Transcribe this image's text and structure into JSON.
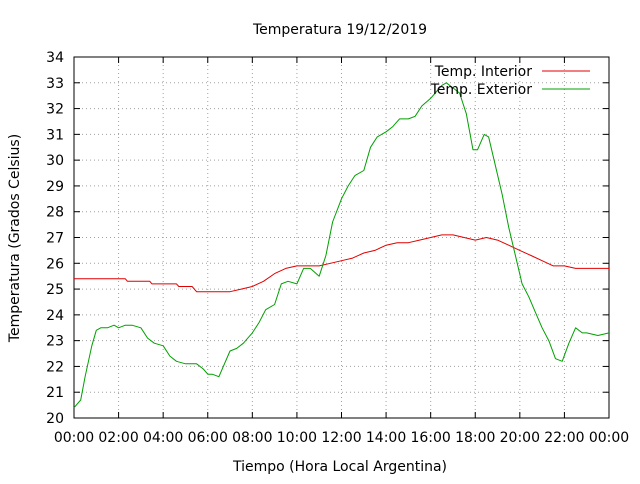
{
  "chart_data": {
    "type": "line",
    "title": "Temperatura 19/12/2019",
    "xlabel": "Tiempo (Hora Local Argentina)",
    "ylabel": "Temperatura (Grados Celsius)",
    "xlim": [
      0,
      24
    ],
    "ylim": [
      20,
      34
    ],
    "x_ticks": [
      0,
      2,
      4,
      6,
      8,
      10,
      12,
      14,
      16,
      18,
      20,
      22,
      24
    ],
    "x_tick_labels": [
      "00:00",
      "02:00",
      "04:00",
      "06:00",
      "08:00",
      "10:00",
      "12:00",
      "14:00",
      "16:00",
      "18:00",
      "20:00",
      "22:00",
      "00:00"
    ],
    "y_ticks": [
      20,
      21,
      22,
      23,
      24,
      25,
      26,
      27,
      28,
      29,
      30,
      31,
      32,
      33,
      34
    ],
    "y_tick_labels": [
      "20",
      "21",
      "22",
      "23",
      "24",
      "25",
      "26",
      "27",
      "28",
      "29",
      "30",
      "31",
      "32",
      "33",
      "34"
    ],
    "grid": true,
    "legend_position": "top-right",
    "series": [
      {
        "name": "Temp. Interior",
        "color": "#e00000",
        "x": [
          0,
          2.3,
          2.4,
          3.4,
          3.5,
          4.6,
          4.7,
          5.3,
          5.5,
          7.0,
          7.5,
          8.0,
          8.5,
          9.0,
          9.5,
          10.0,
          11.0,
          11.5,
          12.0,
          12.5,
          13.0,
          13.5,
          14.0,
          14.5,
          15.0,
          15.5,
          16.0,
          16.5,
          17.0,
          17.5,
          18.0,
          18.5,
          19.0,
          19.5,
          20.0,
          20.5,
          21.0,
          21.5,
          22.0,
          22.5,
          23.0,
          24.0
        ],
        "y": [
          25.4,
          25.4,
          25.3,
          25.3,
          25.2,
          25.2,
          25.1,
          25.1,
          24.9,
          24.9,
          25.0,
          25.1,
          25.3,
          25.6,
          25.8,
          25.9,
          25.9,
          26.0,
          26.1,
          26.2,
          26.4,
          26.5,
          26.7,
          26.8,
          26.8,
          26.9,
          27.0,
          27.1,
          27.1,
          27.0,
          26.9,
          27.0,
          26.9,
          26.7,
          26.5,
          26.3,
          26.1,
          25.9,
          25.9,
          25.8,
          25.8,
          25.8
        ],
        "label_key": "interior"
      },
      {
        "name": "Temp. Exterior",
        "color": "#00a000",
        "x": [
          0,
          0.3,
          0.5,
          0.8,
          1.0,
          1.2,
          1.5,
          1.8,
          2.0,
          2.3,
          2.6,
          3.0,
          3.3,
          3.6,
          4.0,
          4.3,
          4.6,
          5.0,
          5.5,
          5.8,
          6.0,
          6.2,
          6.5,
          7.0,
          7.3,
          7.6,
          8.0,
          8.3,
          8.6,
          9.0,
          9.3,
          9.6,
          10.0,
          10.3,
          10.6,
          11.0,
          11.3,
          11.6,
          12.0,
          12.3,
          12.6,
          13.0,
          13.3,
          13.6,
          14.0,
          14.3,
          14.6,
          15.0,
          15.3,
          15.6,
          16.0,
          16.3,
          16.5,
          16.7,
          17.0,
          17.3,
          17.6,
          17.9,
          18.1,
          18.4,
          18.6,
          18.9,
          19.2,
          19.5,
          19.8,
          20.1,
          20.4,
          20.7,
          21.0,
          21.3,
          21.6,
          21.9,
          22.2,
          22.5,
          22.8,
          23.0,
          23.5,
          24.0
        ],
        "y": [
          20.4,
          20.7,
          21.6,
          22.8,
          23.4,
          23.5,
          23.5,
          23.6,
          23.5,
          23.6,
          23.6,
          23.5,
          23.1,
          22.9,
          22.8,
          22.4,
          22.2,
          22.1,
          22.1,
          21.9,
          21.7,
          21.7,
          21.6,
          22.6,
          22.7,
          22.9,
          23.3,
          23.7,
          24.2,
          24.4,
          25.2,
          25.3,
          25.2,
          25.8,
          25.8,
          25.5,
          26.3,
          27.6,
          28.5,
          29.0,
          29.4,
          29.6,
          30.5,
          30.9,
          31.1,
          31.3,
          31.6,
          31.6,
          31.7,
          32.1,
          32.4,
          32.7,
          32.9,
          33.0,
          32.8,
          32.6,
          31.8,
          30.4,
          30.4,
          31.0,
          30.9,
          29.8,
          28.7,
          27.4,
          26.3,
          25.2,
          24.7,
          24.1,
          23.5,
          23.0,
          22.3,
          22.2,
          22.9,
          23.5,
          23.3,
          23.3,
          23.2,
          23.3
        ],
        "label_key": "exterior"
      }
    ]
  }
}
